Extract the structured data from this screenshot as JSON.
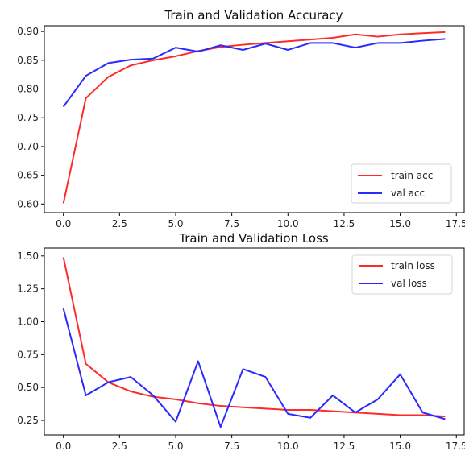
{
  "chart_data": [
    {
      "type": "line",
      "title": "Train and Validation Accuracy",
      "xlabel": "",
      "ylabel": "",
      "xlim": [
        -0.85,
        17.85
      ],
      "ylim": [
        0.585,
        0.91
      ],
      "xticks": [
        0.0,
        2.5,
        5.0,
        7.5,
        10.0,
        12.5,
        15.0,
        17.5
      ],
      "xtick_labels": [
        "0.0",
        "2.5",
        "5.0",
        "7.5",
        "10.0",
        "12.5",
        "15.0",
        "17.5"
      ],
      "yticks": [
        0.6,
        0.65,
        0.7,
        0.75,
        0.8,
        0.85,
        0.9
      ],
      "ytick_labels": [
        "0.60",
        "0.65",
        "0.70",
        "0.75",
        "0.80",
        "0.85",
        "0.90"
      ],
      "legend_position": "lower-right",
      "grid": false,
      "x": [
        0,
        1,
        2,
        3,
        4,
        5,
        6,
        7,
        8,
        9,
        10,
        11,
        12,
        13,
        14,
        15,
        16,
        17
      ],
      "series": [
        {
          "name": "train acc",
          "color": "#ff2a2a",
          "values": [
            0.601,
            0.784,
            0.821,
            0.841,
            0.85,
            0.857,
            0.866,
            0.873,
            0.877,
            0.88,
            0.883,
            0.886,
            0.889,
            0.895,
            0.891,
            0.895,
            0.897,
            0.899
          ]
        },
        {
          "name": "val acc",
          "color": "#2a2aff",
          "values": [
            0.769,
            0.823,
            0.845,
            0.851,
            0.853,
            0.872,
            0.865,
            0.876,
            0.868,
            0.879,
            0.868,
            0.88,
            0.88,
            0.872,
            0.88,
            0.88,
            0.884,
            0.887
          ]
        }
      ]
    },
    {
      "type": "line",
      "title": "Train and Validation Loss",
      "xlabel": "",
      "ylabel": "",
      "xlim": [
        -0.85,
        17.85
      ],
      "ylim": [
        0.14,
        1.56
      ],
      "xticks": [
        0.0,
        2.5,
        5.0,
        7.5,
        10.0,
        12.5,
        15.0,
        17.5
      ],
      "xtick_labels": [
        "0.0",
        "2.5",
        "5.0",
        "7.5",
        "10.0",
        "12.5",
        "15.0",
        "17.5"
      ],
      "yticks": [
        0.25,
        0.5,
        0.75,
        1.0,
        1.25,
        1.5
      ],
      "ytick_labels": [
        "0.25",
        "0.50",
        "0.75",
        "1.00",
        "1.25",
        "1.50"
      ],
      "legend_position": "upper-right",
      "grid": false,
      "x": [
        0,
        1,
        2,
        3,
        4,
        5,
        6,
        7,
        8,
        9,
        10,
        11,
        12,
        13,
        14,
        15,
        16,
        17
      ],
      "series": [
        {
          "name": "train loss",
          "color": "#ff2a2a",
          "values": [
            1.49,
            0.68,
            0.54,
            0.47,
            0.43,
            0.41,
            0.38,
            0.36,
            0.35,
            0.34,
            0.33,
            0.33,
            0.32,
            0.31,
            0.3,
            0.29,
            0.29,
            0.28
          ]
        },
        {
          "name": "val loss",
          "color": "#2a2aff",
          "values": [
            1.1,
            0.44,
            0.54,
            0.58,
            0.44,
            0.24,
            0.7,
            0.2,
            0.64,
            0.58,
            0.3,
            0.27,
            0.44,
            0.31,
            0.41,
            0.6,
            0.31,
            0.26
          ]
        }
      ]
    }
  ]
}
